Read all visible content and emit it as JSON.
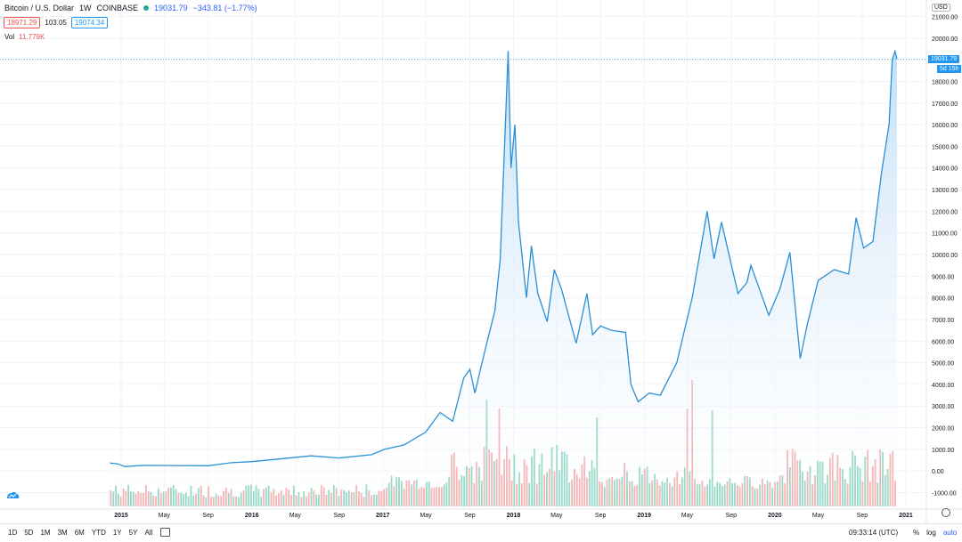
{
  "header": {
    "title": "Bitcoin / U.S. Dollar",
    "interval": "1W",
    "exchange": "COINBASE",
    "last_price": "19031.79",
    "change": "−343.81 (−1.77%)",
    "bid": "18971.29",
    "spread": "103.05",
    "ask": "19074.34"
  },
  "volume": {
    "label": "Vol",
    "value": "11.779K"
  },
  "currency": "USD",
  "price_tag": "19031.79",
  "countdown": "5d 15h",
  "time_ranges": [
    "1D",
    "5D",
    "1M",
    "3M",
    "6M",
    "YTD",
    "1Y",
    "5Y",
    "All"
  ],
  "clock": "09:33:14 (UTC)",
  "scale_options": {
    "percent": "%",
    "log": "log",
    "auto": "auto"
  },
  "colors": {
    "line": "#2b8fd6",
    "fill": "#d6eaf9",
    "vol_up": "#7ccfb8",
    "vol_down": "#f3a0a0",
    "accent": "#2196f3"
  },
  "chart_data": {
    "type": "area",
    "title": "Bitcoin / U.S. Dollar",
    "ylabel": "USD",
    "ylim": [
      -2000,
      21000
    ],
    "y_ticks": [
      "21000.00",
      "20000.00",
      "19000.00",
      "18000.00",
      "17000.00",
      "16000.00",
      "15000.00",
      "14000.00",
      "13000.00",
      "12000.00",
      "11000.00",
      "10000.00",
      "9000.00",
      "8000.00",
      "7000.00",
      "6000.00",
      "5000.00",
      "4000.00",
      "3000.00",
      "2000.00",
      "1000.00",
      "0.00",
      "-1000.00"
    ],
    "x_ticks": [
      "2015",
      "May",
      "Sep",
      "2016",
      "May",
      "Sep",
      "2017",
      "May",
      "Sep",
      "2018",
      "May",
      "Sep",
      "2019",
      "May",
      "Sep",
      "2020",
      "May",
      "Sep",
      "2021"
    ],
    "grid": true,
    "series": [
      {
        "x": [
          "2014-12-01",
          "2014-12-22",
          "2015-01-12",
          "2015-03-01",
          "2015-06-01",
          "2015-09-01",
          "2015-11-05",
          "2016-01-01",
          "2016-06-15",
          "2016-09-01",
          "2016-12-01",
          "2017-01-05",
          "2017-03-01",
          "2017-05-01",
          "2017-06-10",
          "2017-07-15",
          "2017-08-15",
          "2017-09-01",
          "2017-09-15",
          "2017-10-15",
          "2017-11-10",
          "2017-11-25",
          "2017-12-17",
          "2017-12-25",
          "2018-01-05",
          "2018-01-15",
          "2018-02-06",
          "2018-02-20",
          "2018-03-10",
          "2018-04-05",
          "2018-04-25",
          "2018-05-15",
          "2018-06-25",
          "2018-07-25",
          "2018-08-10",
          "2018-09-01",
          "2018-10-01",
          "2018-11-10",
          "2018-11-25",
          "2018-12-15",
          "2019-01-15",
          "2019-02-15",
          "2019-04-02",
          "2019-05-15",
          "2019-06-26",
          "2019-07-15",
          "2019-08-05",
          "2019-09-20",
          "2019-10-15",
          "2019-10-26",
          "2019-12-15",
          "2020-01-15",
          "2020-02-12",
          "2020-03-12",
          "2020-04-01",
          "2020-05-01",
          "2020-06-15",
          "2020-07-25",
          "2020-08-15",
          "2020-09-05",
          "2020-10-01",
          "2020-10-25",
          "2020-11-15",
          "2020-11-24",
          "2020-12-02",
          "2020-12-07"
        ],
        "y": [
          370,
          330,
          200,
          260,
          250,
          240,
          380,
          430,
          700,
          600,
          750,
          1000,
          1200,
          1800,
          2700,
          2300,
          4300,
          4700,
          3600,
          5700,
          7400,
          9800,
          19400,
          14000,
          16000,
          11500,
          8000,
          10400,
          8200,
          6900,
          9300,
          8400,
          5900,
          8200,
          6300,
          6700,
          6500,
          6400,
          4000,
          3200,
          3600,
          3500,
          5000,
          8000,
          12000,
          9800,
          11500,
          8200,
          8700,
          9500,
          7200,
          8400,
          10100,
          5200,
          6800,
          8800,
          9300,
          9100,
          11700,
          10300,
          10600,
          13800,
          16000,
          19000,
          19400,
          19031
        ]
      }
    ],
    "volume": {
      "label": "Vol",
      "last": "11.779K"
    }
  }
}
